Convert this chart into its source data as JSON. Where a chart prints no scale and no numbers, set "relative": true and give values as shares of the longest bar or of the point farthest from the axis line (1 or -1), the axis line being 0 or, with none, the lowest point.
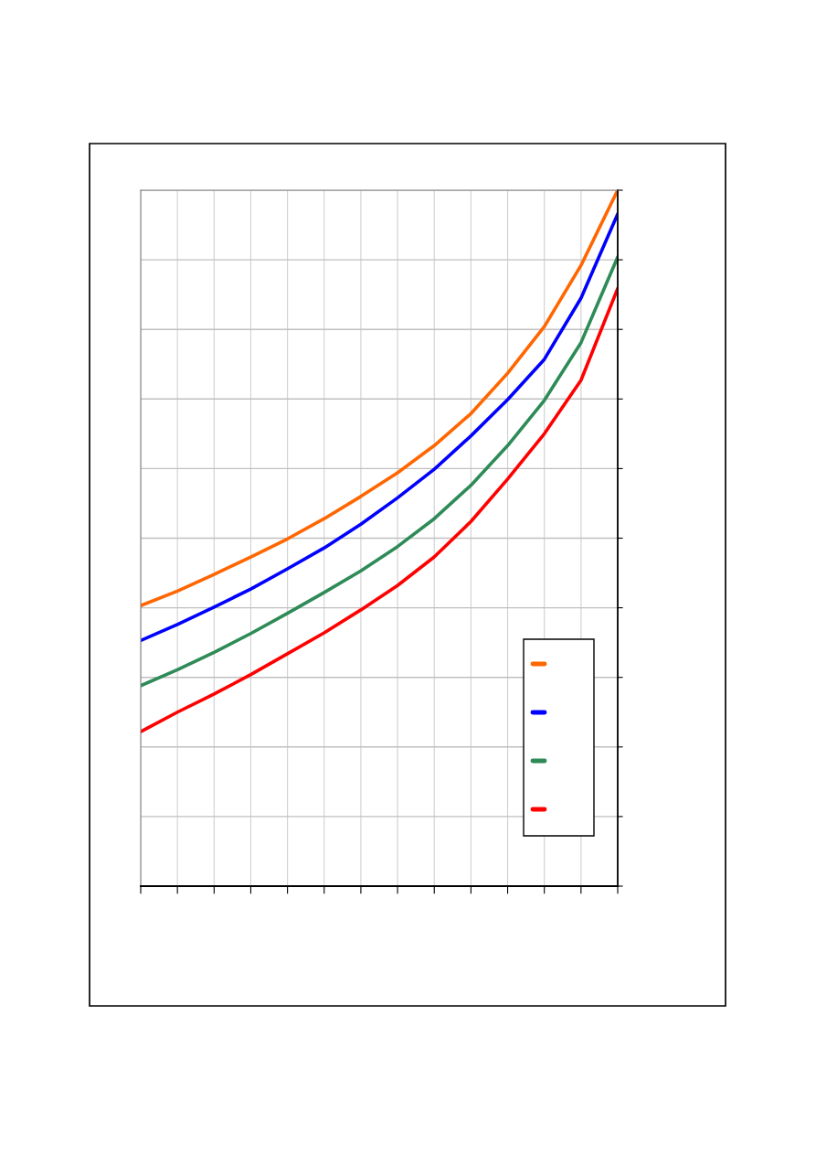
{
  "chart_data": {
    "type": "line",
    "relative": true,
    "grid": true,
    "line_style": "solid",
    "marker": "none",
    "categories": [
      null,
      null,
      null,
      null,
      null,
      null,
      null,
      null,
      null,
      null,
      null,
      null,
      null,
      null
    ],
    "series": [
      {
        "color": "#ff6600",
        "values": [
          0.403,
          0.424,
          0.448,
          0.473,
          0.499,
          0.528,
          0.56,
          0.594,
          0.633,
          0.679,
          0.737,
          0.804,
          0.892,
          1.0
        ]
      },
      {
        "color": "#0000ff",
        "values": [
          0.353,
          0.376,
          0.401,
          0.427,
          0.456,
          0.486,
          0.52,
          0.558,
          0.599,
          0.647,
          0.699,
          0.757,
          0.845,
          0.966
        ]
      },
      {
        "color": "#2e8b57",
        "values": [
          0.288,
          0.311,
          0.336,
          0.363,
          0.392,
          0.422,
          0.453,
          0.488,
          0.528,
          0.576,
          0.633,
          0.698,
          0.781,
          0.904
        ]
      },
      {
        "color": "#ff0000",
        "values": [
          0.222,
          0.25,
          0.276,
          0.304,
          0.334,
          0.364,
          0.397,
          0.432,
          0.473,
          0.524,
          0.585,
          0.65,
          0.727,
          0.859
        ]
      }
    ]
  }
}
